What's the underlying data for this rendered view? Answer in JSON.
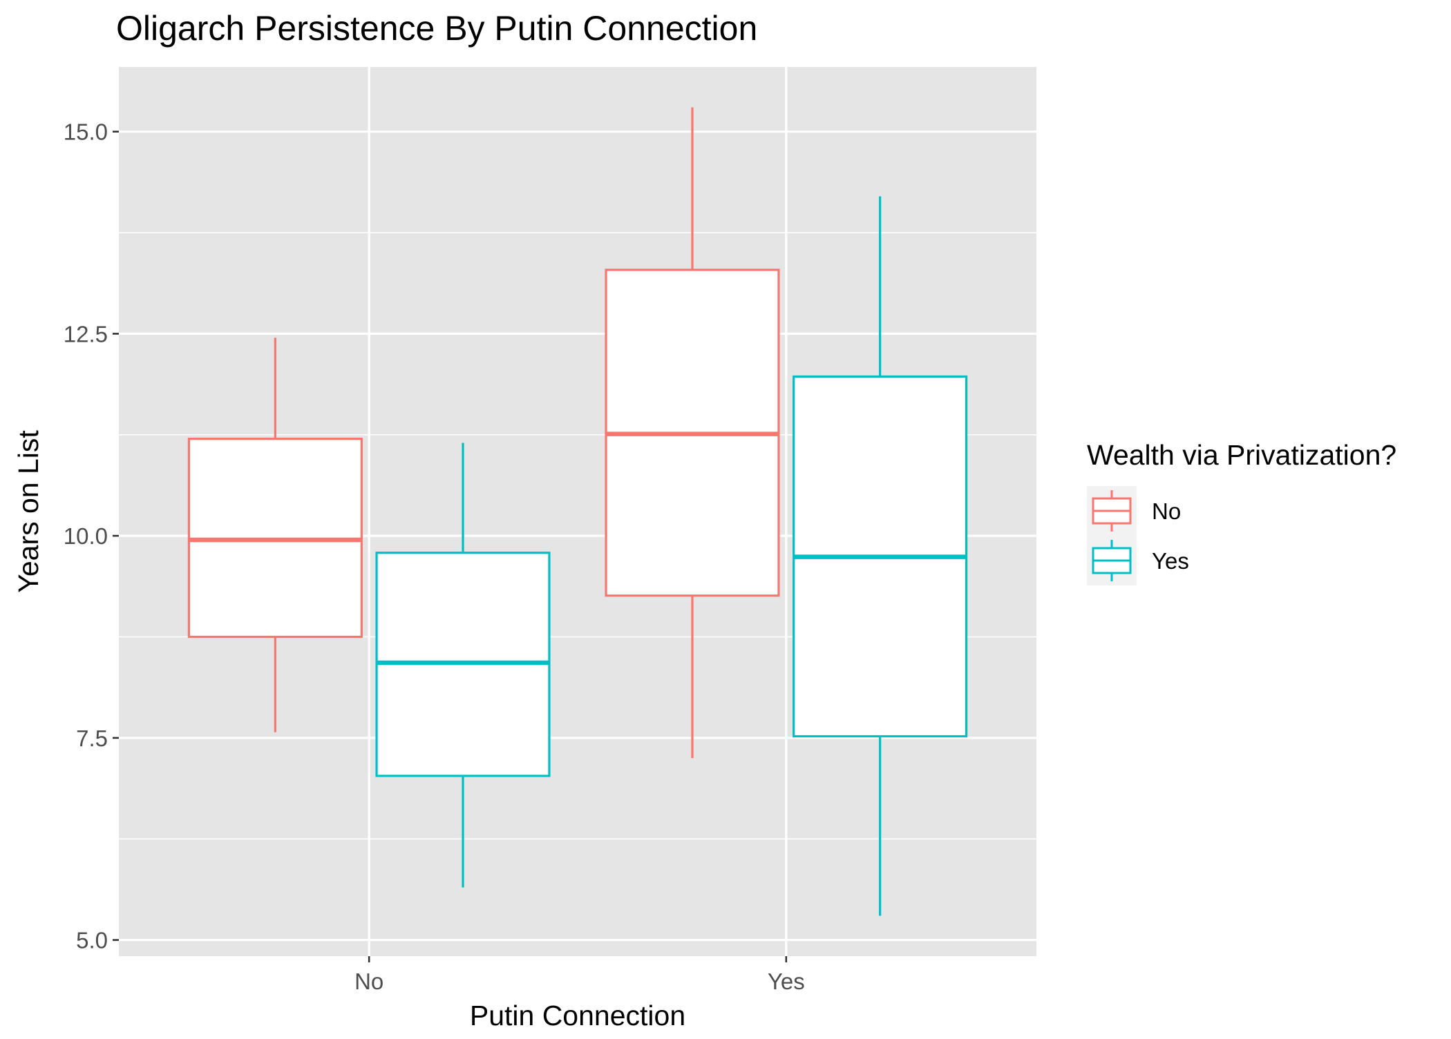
{
  "chart_data": {
    "type": "boxplot",
    "title": "Oligarch Persistence By Putin Connection",
    "xlabel": "Putin Connection",
    "ylabel": "Years on List",
    "categories": [
      "No",
      "Yes"
    ],
    "ylim": [
      4.8,
      15.8
    ],
    "y_ticks": [
      5.0,
      7.5,
      10.0,
      12.5,
      15.0
    ],
    "y_tick_labels": [
      "5.0",
      "7.5",
      "10.0",
      "12.5",
      "15.0"
    ],
    "y_minor_ticks": [
      6.25,
      8.75,
      11.25,
      13.75
    ],
    "grid": true,
    "legend": {
      "title": "Wealth via Privatization?",
      "position": "right",
      "entries": [
        "No",
        "Yes"
      ]
    },
    "series": [
      {
        "name": "No",
        "color": "#F8766D",
        "boxes": [
          {
            "category": "No",
            "min": 7.57,
            "q1": 8.75,
            "median": 9.95,
            "q3": 11.2,
            "max": 12.45
          },
          {
            "category": "Yes",
            "min": 7.25,
            "q1": 9.26,
            "median": 11.26,
            "q3": 13.29,
            "max": 15.3
          }
        ]
      },
      {
        "name": "Yes",
        "color": "#00BFC4",
        "boxes": [
          {
            "category": "No",
            "min": 5.65,
            "q1": 7.03,
            "median": 8.43,
            "q3": 9.79,
            "max": 11.15
          },
          {
            "category": "Yes",
            "min": 5.3,
            "q1": 7.52,
            "median": 9.74,
            "q3": 11.97,
            "max": 14.2
          }
        ]
      }
    ]
  }
}
